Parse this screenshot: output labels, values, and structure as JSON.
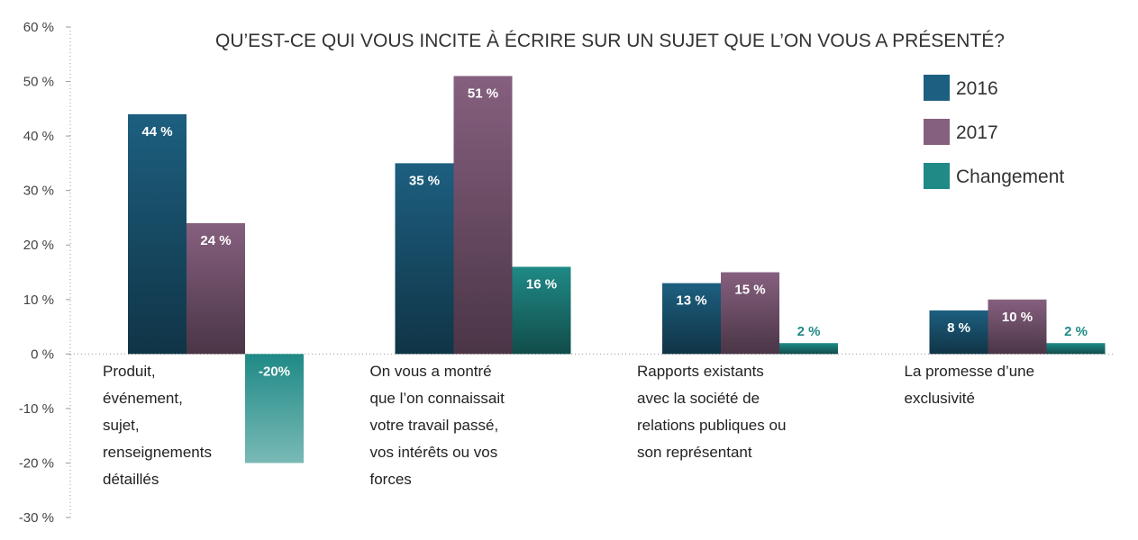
{
  "chart_data": {
    "type": "bar",
    "title": "QU’EST-CE QUI VOUS INCITE À ÉCRIRE SUR UN SUJET QUE L’ON VOUS A PRÉSENTÉ?",
    "xlabel": "",
    "ylabel": "",
    "ylim": [
      -30,
      60
    ],
    "yticks": [
      60,
      50,
      40,
      30,
      20,
      10,
      0,
      -10,
      -20,
      -30
    ],
    "ytick_labels": [
      "60 %",
      "50 %",
      "40 %",
      "30 %",
      "20 %",
      "10 %",
      "0 %",
      "-10 %",
      "-20 %",
      "-30 %"
    ],
    "grid": false,
    "legend_position": "top-right",
    "categories": [
      [
        "Produit,",
        "événement,",
        "sujet,",
        "renseignements",
        "détaillés"
      ],
      [
        "On vous a montré",
        "que l’on connaissait",
        "votre travail passé,",
        "vos intérêts ou vos",
        "forces"
      ],
      [
        "Rapports existants",
        "avec la société de",
        "relations publiques ou",
        "son représentant"
      ],
      [
        "La promesse d’une",
        "exclusivité"
      ]
    ],
    "series": [
      {
        "name": "2016",
        "color": "#1d5f80",
        "values": [
          44,
          35,
          13,
          8
        ],
        "labels": [
          "44 %",
          "35 %",
          "13 %",
          "8 %"
        ]
      },
      {
        "name": "2017",
        "color": "#86607f",
        "values": [
          24,
          51,
          15,
          10
        ],
        "labels": [
          "24 %",
          "51 %",
          "15 %",
          "10 %"
        ]
      },
      {
        "name": "Changement",
        "color": "#1f8a86",
        "values": [
          -20,
          16,
          2,
          2
        ],
        "labels": [
          "-20%",
          "16 %",
          "2 %",
          "2 %"
        ]
      }
    ]
  }
}
